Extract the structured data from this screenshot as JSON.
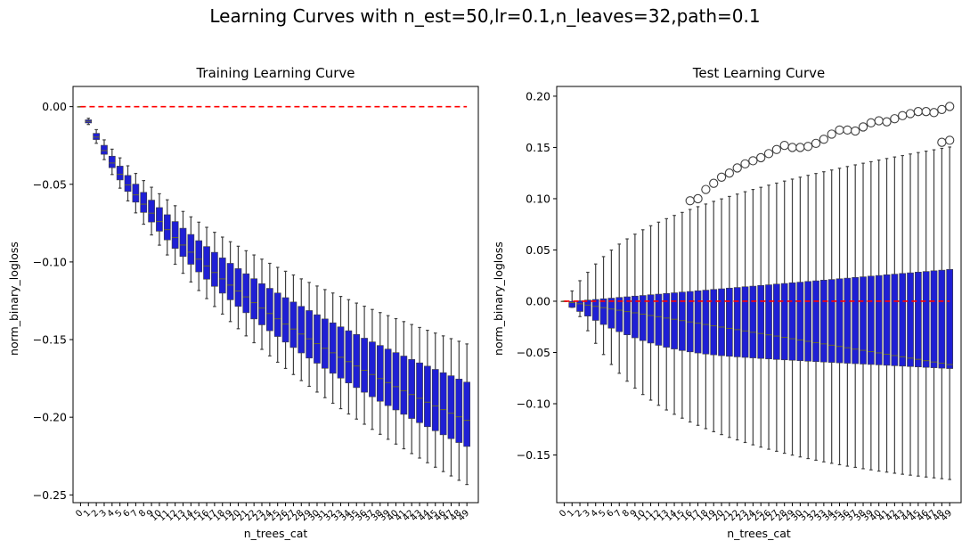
{
  "title": "Learning Curves with n_est=50,lr=0.1,n_leaves=32,path=0.1",
  "colors": {
    "box": "#1f1fd4",
    "whisker": "#3f3f3f",
    "median": "#6a6a2a",
    "ref_line": "#ff0000",
    "outlier": "#3f3f3f"
  },
  "chart_data": [
    {
      "type": "box",
      "title": "Training Learning Curve",
      "xlabel": "n_trees_cat",
      "ylabel": "norm_binary_logloss",
      "ylim": [
        -0.255,
        0.013
      ],
      "yticks": [
        -0.25,
        -0.2,
        -0.15,
        -0.1,
        -0.05,
        0.0
      ],
      "ytick_labels": [
        "−0.25",
        "−0.20",
        "−0.15",
        "−0.10",
        "−0.05",
        "0.00"
      ],
      "categories": [
        "0",
        "1",
        "2",
        "3",
        "4",
        "5",
        "6",
        "7",
        "8",
        "9",
        "10",
        "11",
        "12",
        "13",
        "14",
        "15",
        "16",
        "17",
        "18",
        "19",
        "20",
        "21",
        "22",
        "23",
        "24",
        "25",
        "26",
        "27",
        "28",
        "29",
        "30",
        "31",
        "32",
        "33",
        "34",
        "35",
        "36",
        "37",
        "38",
        "39",
        "40",
        "41",
        "42",
        "43",
        "44",
        "45",
        "46",
        "47",
        "48",
        "49"
      ],
      "reference_line": 0,
      "grid": false,
      "boxes": [
        {
          "min": 0.0,
          "q1": 0.0,
          "median": 0.0,
          "q3": 0.0,
          "max": 0.0
        },
        {
          "min": -0.0115,
          "q1": -0.0105,
          "median": -0.0095,
          "q3": -0.0085,
          "max": -0.0075
        },
        {
          "min": -0.0236,
          "q1": -0.0212,
          "median": -0.0196,
          "q3": -0.0172,
          "max": -0.0148
        },
        {
          "min": -0.0341,
          "q1": -0.0307,
          "median": -0.0283,
          "q3": -0.0249,
          "max": -0.0214
        },
        {
          "min": -0.0437,
          "q1": -0.0393,
          "median": -0.0363,
          "q3": -0.0319,
          "max": -0.0274
        },
        {
          "min": -0.0525,
          "q1": -0.0472,
          "median": -0.0436,
          "q3": -0.0383,
          "max": -0.033
        },
        {
          "min": -0.0607,
          "q1": -0.0546,
          "median": -0.0504,
          "q3": -0.0443,
          "max": -0.0381
        },
        {
          "min": -0.0684,
          "q1": -0.0615,
          "median": -0.0568,
          "q3": -0.0499,
          "max": -0.043
        },
        {
          "min": -0.0757,
          "q1": -0.0681,
          "median": -0.0628,
          "q3": -0.0552,
          "max": -0.0476
        },
        {
          "min": -0.0826,
          "q1": -0.0743,
          "median": -0.0686,
          "q3": -0.0602,
          "max": -0.0519
        },
        {
          "min": -0.0892,
          "q1": -0.0802,
          "median": -0.074,
          "q3": -0.065,
          "max": -0.0561
        },
        {
          "min": -0.0955,
          "q1": -0.0858,
          "median": -0.0792,
          "q3": -0.0696,
          "max": -0.06
        },
        {
          "min": -0.1015,
          "q1": -0.0913,
          "median": -0.0843,
          "q3": -0.074,
          "max": -0.0638
        },
        {
          "min": -0.1073,
          "q1": -0.0965,
          "median": -0.0891,
          "q3": -0.0783,
          "max": -0.0675
        },
        {
          "min": -0.1129,
          "q1": -0.1015,
          "median": -0.0937,
          "q3": -0.0823,
          "max": -0.071
        },
        {
          "min": -0.1184,
          "q1": -0.1064,
          "median": -0.0982,
          "q3": -0.0863,
          "max": -0.0744
        },
        {
          "min": -0.1236,
          "q1": -0.1111,
          "median": -0.1026,
          "q3": -0.0901,
          "max": -0.0777
        },
        {
          "min": -0.1287,
          "q1": -0.1157,
          "median": -0.1068,
          "q3": -0.0938,
          "max": -0.0809
        },
        {
          "min": -0.1336,
          "q1": -0.1201,
          "median": -0.1109,
          "q3": -0.0974,
          "max": -0.084
        },
        {
          "min": -0.1384,
          "q1": -0.1244,
          "median": -0.1149,
          "q3": -0.1009,
          "max": -0.087
        },
        {
          "min": -0.143,
          "q1": -0.1286,
          "median": -0.1187,
          "q3": -0.1043,
          "max": -0.0899
        },
        {
          "min": -0.1476,
          "q1": -0.1327,
          "median": -0.1225,
          "q3": -0.1076,
          "max": -0.0928
        },
        {
          "min": -0.152,
          "q1": -0.1367,
          "median": -0.1262,
          "q3": -0.1108,
          "max": -0.0955
        },
        {
          "min": -0.1563,
          "q1": -0.1405,
          "median": -0.1297,
          "q3": -0.114,
          "max": -0.0982
        },
        {
          "min": -0.1605,
          "q1": -0.1443,
          "median": -0.1332,
          "q3": -0.117,
          "max": -0.1009
        },
        {
          "min": -0.1646,
          "q1": -0.148,
          "median": -0.1366,
          "q3": -0.12,
          "max": -0.1035
        },
        {
          "min": -0.1686,
          "q1": -0.1516,
          "median": -0.14,
          "q3": -0.123,
          "max": -0.106
        },
        {
          "min": -0.1725,
          "q1": -0.1551,
          "median": -0.1432,
          "q3": -0.1258,
          "max": -0.1084
        },
        {
          "min": -0.1764,
          "q1": -0.1586,
          "median": -0.1464,
          "q3": -0.1286,
          "max": -0.1109
        },
        {
          "min": -0.1801,
          "q1": -0.1619,
          "median": -0.1495,
          "q3": -0.1313,
          "max": -0.1132
        },
        {
          "min": -0.1838,
          "q1": -0.1652,
          "median": -0.1526,
          "q3": -0.134,
          "max": -0.1155
        },
        {
          "min": -0.1874,
          "q1": -0.1685,
          "median": -0.1556,
          "q3": -0.1367,
          "max": -0.1178
        },
        {
          "min": -0.191,
          "q1": -0.1717,
          "median": -0.1585,
          "q3": -0.1392,
          "max": -0.12
        },
        {
          "min": -0.1945,
          "q1": -0.1748,
          "median": -0.1614,
          "q3": -0.1418,
          "max": -0.1222
        },
        {
          "min": -0.1979,
          "q1": -0.1779,
          "median": -0.1642,
          "q3": -0.1443,
          "max": -0.1243
        },
        {
          "min": -0.2012,
          "q1": -0.1809,
          "median": -0.167,
          "q3": -0.1467,
          "max": -0.1265
        },
        {
          "min": -0.2045,
          "q1": -0.1839,
          "median": -0.1698,
          "q3": -0.1491,
          "max": -0.1285
        },
        {
          "min": -0.2078,
          "q1": -0.1868,
          "median": -0.1725,
          "q3": -0.1515,
          "max": -0.1306
        },
        {
          "min": -0.211,
          "q1": -0.1897,
          "median": -0.1751,
          "q3": -0.1538,
          "max": -0.1326
        },
        {
          "min": -0.2142,
          "q1": -0.1925,
          "median": -0.1777,
          "q3": -0.1561,
          "max": -0.1346
        },
        {
          "min": -0.2173,
          "q1": -0.1953,
          "median": -0.1803,
          "q3": -0.1584,
          "max": -0.1365
        },
        {
          "min": -0.2203,
          "q1": -0.1981,
          "median": -0.1829,
          "q3": -0.1606,
          "max": -0.1384
        },
        {
          "min": -0.2234,
          "q1": -0.2008,
          "median": -0.1854,
          "q3": -0.1628,
          "max": -0.1403
        },
        {
          "min": -0.2263,
          "q1": -0.2035,
          "median": -0.1878,
          "q3": -0.165,
          "max": -0.1422
        },
        {
          "min": -0.2293,
          "q1": -0.2061,
          "median": -0.1903,
          "q3": -0.1671,
          "max": -0.144
        },
        {
          "min": -0.2322,
          "q1": -0.2087,
          "median": -0.1927,
          "q3": -0.1692,
          "max": -0.1458
        },
        {
          "min": -0.235,
          "q1": -0.2113,
          "median": -0.1951,
          "q3": -0.1713,
          "max": -0.1476
        },
        {
          "min": -0.2378,
          "q1": -0.2138,
          "median": -0.1974,
          "q3": -0.1733,
          "max": -0.1494
        },
        {
          "min": -0.2406,
          "q1": -0.2163,
          "median": -0.1997,
          "q3": -0.1754,
          "max": -0.1511
        },
        {
          "min": -0.2433,
          "q1": -0.2188,
          "median": -0.202,
          "q3": -0.1774,
          "max": -0.1528
        }
      ]
    },
    {
      "type": "box",
      "title": "Test Learning Curve",
      "xlabel": "n_trees_cat",
      "ylabel": "norm_binary_logloss",
      "ylim": [
        -0.1965,
        0.2095
      ],
      "yticks": [
        -0.15,
        -0.1,
        -0.05,
        0.0,
        0.05,
        0.1,
        0.15,
        0.2
      ],
      "ytick_labels": [
        "−0.15",
        "−0.10",
        "−0.05",
        "0.00",
        "0.05",
        "0.10",
        "0.15",
        "0.20"
      ],
      "categories": [
        "0",
        "1",
        "2",
        "3",
        "4",
        "5",
        "6",
        "7",
        "8",
        "9",
        "10",
        "11",
        "12",
        "13",
        "14",
        "15",
        "16",
        "17",
        "18",
        "19",
        "20",
        "21",
        "22",
        "23",
        "24",
        "25",
        "26",
        "27",
        "28",
        "29",
        "30",
        "31",
        "32",
        "33",
        "34",
        "35",
        "36",
        "37",
        "38",
        "39",
        "40",
        "41",
        "42",
        "43",
        "44",
        "45",
        "46",
        "47",
        "48",
        "49"
      ],
      "reference_line": 0,
      "grid": false,
      "boxes": [
        {
          "min": 0.0,
          "q1": 0.0,
          "median": 0.0,
          "q3": 0.0,
          "max": 0.0
        },
        {
          "min": -0.006,
          "q1": -0.006,
          "median": -0.0013,
          "q3": -0.0002,
          "max": 0.01
        },
        {
          "min": -0.015,
          "q1": -0.01,
          "median": -0.0025,
          "q3": 0.0004,
          "max": 0.02
        },
        {
          "min": -0.0288,
          "q1": -0.0145,
          "median": -0.0038,
          "q3": 0.0011,
          "max": 0.0282
        },
        {
          "min": -0.0411,
          "q1": -0.0187,
          "median": -0.005,
          "q3": 0.0017,
          "max": 0.0363
        },
        {
          "min": -0.052,
          "q1": -0.0227,
          "median": -0.0063,
          "q3": 0.0024,
          "max": 0.0435
        },
        {
          "min": -0.0617,
          "q1": -0.0263,
          "median": -0.0076,
          "q3": 0.003,
          "max": 0.0499
        },
        {
          "min": -0.0703,
          "q1": -0.0297,
          "median": -0.0088,
          "q3": 0.0037,
          "max": 0.0557
        },
        {
          "min": -0.078,
          "q1": -0.0328,
          "median": -0.0101,
          "q3": 0.0043,
          "max": 0.0608
        },
        {
          "min": -0.0848,
          "q1": -0.0357,
          "median": -0.0113,
          "q3": 0.005,
          "max": 0.0654
        },
        {
          "min": -0.091,
          "q1": -0.0384,
          "median": -0.0126,
          "q3": 0.0056,
          "max": 0.0697
        },
        {
          "min": -0.0965,
          "q1": -0.0408,
          "median": -0.0139,
          "q3": 0.0063,
          "max": 0.0736
        },
        {
          "min": -0.1015,
          "q1": -0.043,
          "median": -0.0151,
          "q3": 0.0069,
          "max": 0.0771
        },
        {
          "min": -0.1061,
          "q1": -0.0449,
          "median": -0.0164,
          "q3": 0.0076,
          "max": 0.0805
        },
        {
          "min": -0.1103,
          "q1": -0.0466,
          "median": -0.0176,
          "q3": 0.0082,
          "max": 0.0837
        },
        {
          "min": -0.1141,
          "q1": -0.0481,
          "median": -0.0189,
          "q3": 0.0089,
          "max": 0.0866
        },
        {
          "min": -0.1178,
          "q1": -0.0494,
          "median": -0.0202,
          "q3": 0.0095,
          "max": 0.0895,
          "outliers": [
            0.098
          ]
        },
        {
          "min": -0.1211,
          "q1": -0.0505,
          "median": -0.0214,
          "q3": 0.0102,
          "max": 0.0922,
          "outliers": [
            0.1
          ]
        },
        {
          "min": -0.1243,
          "q1": -0.0515,
          "median": -0.0227,
          "q3": 0.0108,
          "max": 0.0948,
          "outliers": [
            0.109
          ]
        },
        {
          "min": -0.1273,
          "q1": -0.0523,
          "median": -0.024,
          "q3": 0.0115,
          "max": 0.0974,
          "outliers": [
            0.115
          ]
        },
        {
          "min": -0.1301,
          "q1": -0.0531,
          "median": -0.0252,
          "q3": 0.0121,
          "max": 0.0998,
          "outliers": [
            0.121
          ]
        },
        {
          "min": -0.1328,
          "q1": -0.0537,
          "median": -0.0265,
          "q3": 0.0128,
          "max": 0.1022,
          "outliers": [
            0.125
          ]
        },
        {
          "min": -0.1353,
          "q1": -0.0543,
          "median": -0.0277,
          "q3": 0.0134,
          "max": 0.1045,
          "outliers": [
            0.13
          ]
        },
        {
          "min": -0.1378,
          "q1": -0.0548,
          "median": -0.029,
          "q3": 0.0141,
          "max": 0.1068,
          "outliers": [
            0.134
          ]
        },
        {
          "min": -0.1401,
          "q1": -0.0553,
          "median": -0.0303,
          "q3": 0.0147,
          "max": 0.109,
          "outliers": [
            0.137
          ]
        },
        {
          "min": -0.1423,
          "q1": -0.0558,
          "median": -0.0315,
          "q3": 0.0154,
          "max": 0.1111,
          "outliers": [
            0.14
          ]
        },
        {
          "min": -0.1444,
          "q1": -0.0563,
          "median": -0.0328,
          "q3": 0.016,
          "max": 0.1132,
          "outliers": [
            0.144
          ]
        },
        {
          "min": -0.1464,
          "q1": -0.0568,
          "median": -0.034,
          "q3": 0.0167,
          "max": 0.1152,
          "outliers": [
            0.148
          ]
        },
        {
          "min": -0.1483,
          "q1": -0.0572,
          "median": -0.0353,
          "q3": 0.0173,
          "max": 0.1172,
          "outliers": [
            0.152
          ]
        },
        {
          "min": -0.1501,
          "q1": -0.0576,
          "median": -0.0366,
          "q3": 0.018,
          "max": 0.1191,
          "outliers": [
            0.15
          ]
        },
        {
          "min": -0.1519,
          "q1": -0.058,
          "median": -0.0378,
          "q3": 0.0186,
          "max": 0.121,
          "outliers": [
            0.15
          ]
        },
        {
          "min": -0.1535,
          "q1": -0.0585,
          "median": -0.0391,
          "q3": 0.0193,
          "max": 0.1228,
          "outliers": [
            0.151
          ]
        },
        {
          "min": -0.1551,
          "q1": -0.0589,
          "median": -0.0404,
          "q3": 0.0199,
          "max": 0.1246,
          "outliers": [
            0.154
          ]
        },
        {
          "min": -0.1567,
          "q1": -0.0593,
          "median": -0.0416,
          "q3": 0.0206,
          "max": 0.1263,
          "outliers": [
            0.158
          ]
        },
        {
          "min": -0.1581,
          "q1": -0.0597,
          "median": -0.0429,
          "q3": 0.0212,
          "max": 0.128,
          "outliers": [
            0.163
          ]
        },
        {
          "min": -0.1595,
          "q1": -0.0601,
          "median": -0.0441,
          "q3": 0.0219,
          "max": 0.1297,
          "outliers": [
            0.167
          ]
        },
        {
          "min": -0.1609,
          "q1": -0.0605,
          "median": -0.0454,
          "q3": 0.0225,
          "max": 0.1314,
          "outliers": [
            0.167
          ]
        },
        {
          "min": -0.1621,
          "q1": -0.0609,
          "median": -0.0467,
          "q3": 0.0232,
          "max": 0.133,
          "outliers": [
            0.166
          ]
        },
        {
          "min": -0.1634,
          "q1": -0.0613,
          "median": -0.0479,
          "q3": 0.0238,
          "max": 0.1346,
          "outliers": [
            0.17
          ]
        },
        {
          "min": -0.1645,
          "q1": -0.0617,
          "median": -0.0492,
          "q3": 0.0245,
          "max": 0.1361,
          "outliers": [
            0.174
          ]
        },
        {
          "min": -0.1657,
          "q1": -0.0621,
          "median": -0.0504,
          "q3": 0.0251,
          "max": 0.1377,
          "outliers": [
            0.176
          ]
        },
        {
          "min": -0.1667,
          "q1": -0.0625,
          "median": -0.0517,
          "q3": 0.0258,
          "max": 0.1392,
          "outliers": [
            0.175
          ]
        },
        {
          "min": -0.1678,
          "q1": -0.0629,
          "median": -0.053,
          "q3": 0.0264,
          "max": 0.1407,
          "outliers": [
            0.178
          ]
        },
        {
          "min": -0.1688,
          "q1": -0.0633,
          "median": -0.0542,
          "q3": 0.0271,
          "max": 0.1421,
          "outliers": [
            0.181
          ]
        },
        {
          "min": -0.1697,
          "q1": -0.0637,
          "median": -0.0555,
          "q3": 0.0277,
          "max": 0.1436,
          "outliers": [
            0.183
          ]
        },
        {
          "min": -0.1706,
          "q1": -0.0641,
          "median": -0.0567,
          "q3": 0.0284,
          "max": 0.145,
          "outliers": [
            0.185
          ]
        },
        {
          "min": -0.1715,
          "q1": -0.0645,
          "median": -0.058,
          "q3": 0.029,
          "max": 0.1464,
          "outliers": [
            0.185
          ]
        },
        {
          "min": -0.1723,
          "q1": -0.0649,
          "median": -0.0593,
          "q3": 0.0297,
          "max": 0.1477,
          "outliers": [
            0.184
          ]
        },
        {
          "min": -0.1731,
          "q1": -0.0653,
          "median": -0.0605,
          "q3": 0.0303,
          "max": 0.1491,
          "outliers": [
            0.155,
            0.187
          ]
        },
        {
          "min": -0.1739,
          "q1": -0.0657,
          "median": -0.0618,
          "q3": 0.031,
          "max": 0.1504,
          "outliers": [
            0.157,
            0.19
          ]
        }
      ]
    }
  ]
}
